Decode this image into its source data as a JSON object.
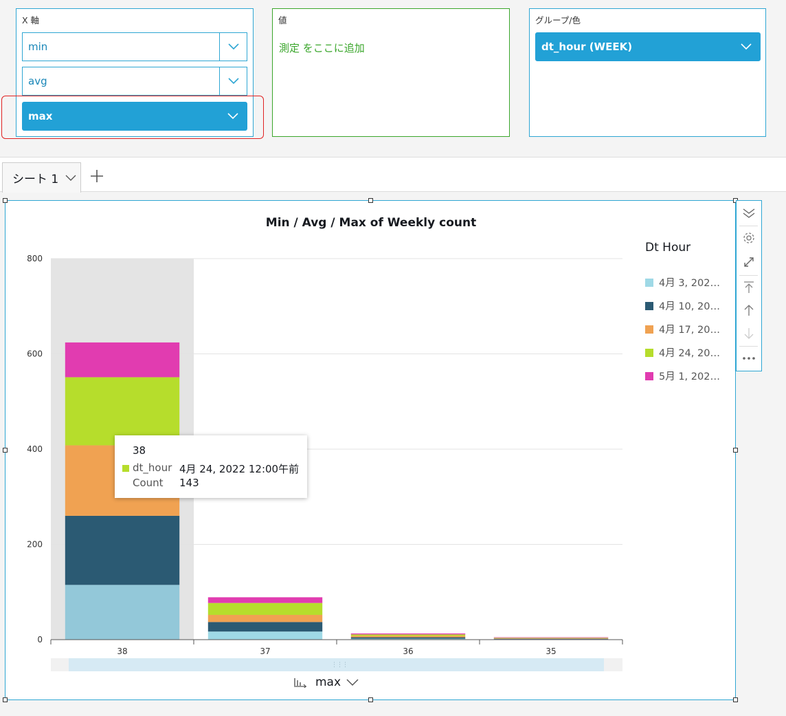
{
  "field_wells": {
    "x_axis": {
      "title": "X 軸",
      "fields": [
        "min",
        "avg",
        "max"
      ],
      "selected": "max"
    },
    "value": {
      "title": "値",
      "hint": "測定 をここに追加"
    },
    "group": {
      "title": "グループ/色",
      "field": "dt_hour (WEEK)"
    }
  },
  "sheet_tabs": {
    "active": "シート 1"
  },
  "visual": {
    "title": "Min / Avg / Max of Weekly count",
    "axis_selector": "max"
  },
  "legend": {
    "title": "Dt Hour",
    "items": [
      {
        "label": "4月 3, 202…",
        "color": "#9fd9e6"
      },
      {
        "label": "4月 10, 20…",
        "color": "#2b5a73"
      },
      {
        "label": "4月 17, 20…",
        "color": "#f0a252"
      },
      {
        "label": "4月 24, 20…",
        "color": "#b6dd2c"
      },
      {
        "label": "5月 1, 202…",
        "color": "#e13cb0"
      }
    ]
  },
  "tooltip": {
    "header": "38",
    "color": "#b6dd2c",
    "rows": [
      {
        "label": "dt_hour",
        "value": "4月 24, 2022 12:00午前"
      },
      {
        "label": "Count",
        "value": "143"
      }
    ]
  },
  "colors": {
    "accent": "#2ea6d3",
    "selected_fill": "#22a1d6",
    "value_well": "#3aa62b",
    "highlight": "#e02020",
    "hover_band": "#e4e4e4"
  },
  "chart_data": {
    "type": "bar",
    "stacked": true,
    "title": "Min / Avg / Max of Weekly count",
    "categories": [
      "38",
      "37",
      "36",
      "35"
    ],
    "series": [
      {
        "name": "4月 3, 202…",
        "values": [
          115,
          17,
          2,
          1
        ]
      },
      {
        "name": "4月 10, 20…",
        "values": [
          145,
          20,
          3,
          1
        ]
      },
      {
        "name": "4月 17, 20…",
        "values": [
          148,
          15,
          3,
          1
        ]
      },
      {
        "name": "4月 24, 20…",
        "values": [
          143,
          25,
          3,
          1
        ]
      },
      {
        "name": "5月 1, 202…",
        "values": [
          73,
          12,
          2,
          1
        ]
      }
    ],
    "yticks": [
      0,
      200,
      400,
      600,
      800
    ],
    "ylim": [
      0,
      800
    ],
    "grid": true,
    "legend_position": "right",
    "highlighted_category": "38"
  }
}
